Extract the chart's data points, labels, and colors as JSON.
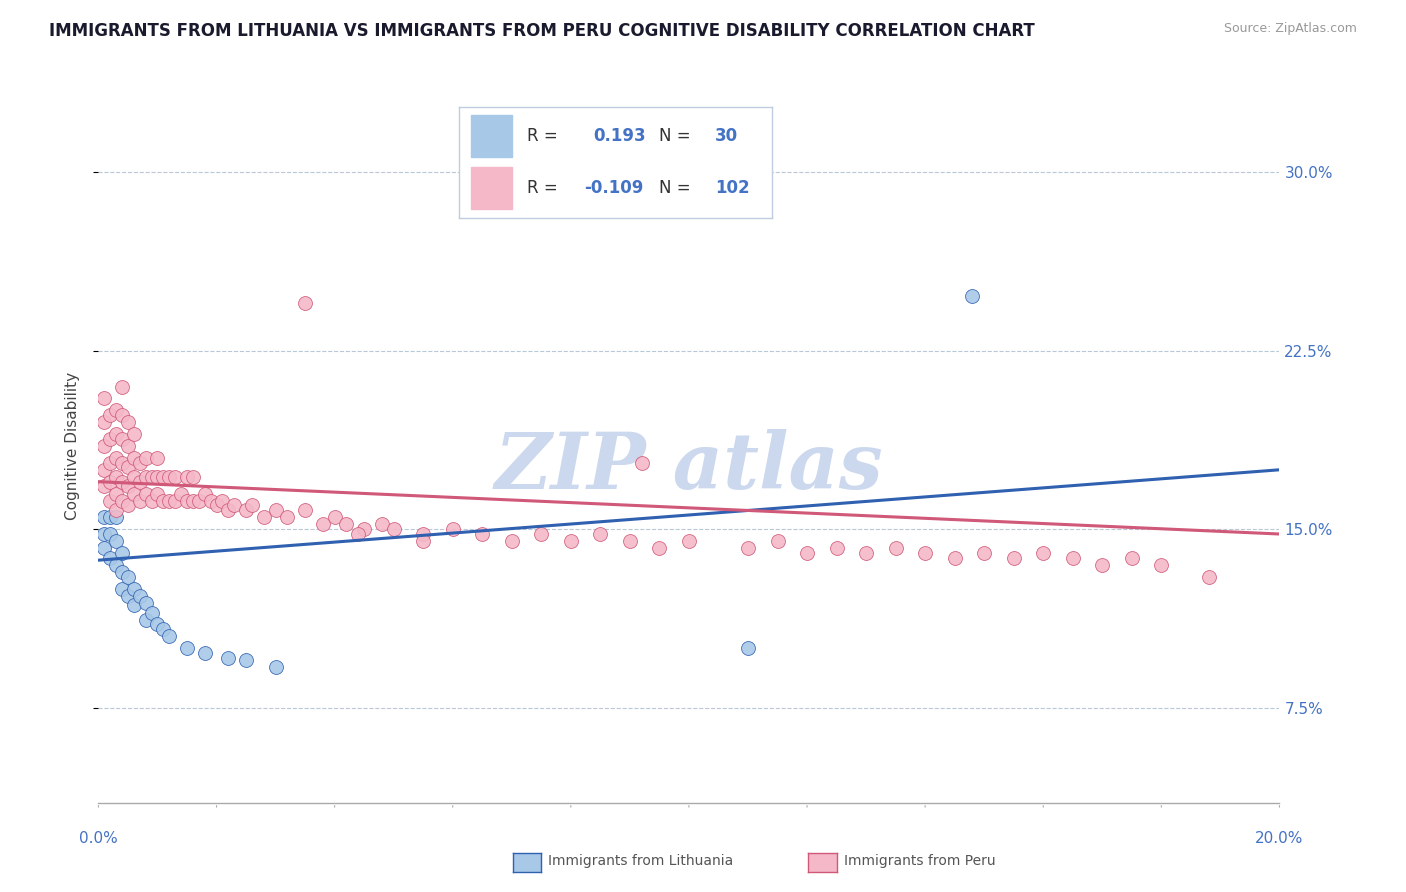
{
  "title": "IMMIGRANTS FROM LITHUANIA VS IMMIGRANTS FROM PERU COGNITIVE DISABILITY CORRELATION CHART",
  "source": "Source: ZipAtlas.com",
  "ylabel": "Cognitive Disability",
  "ytick_vals": [
    0.075,
    0.15,
    0.225,
    0.3
  ],
  "ytick_labels": [
    "7.5%",
    "15.0%",
    "22.5%",
    "30.0%"
  ],
  "xlim": [
    0.0,
    0.2
  ],
  "ylim": [
    0.035,
    0.335
  ],
  "color_lithuania": "#a8c8e8",
  "color_peru": "#f4b8c8",
  "line_color_lithuania": "#3060b0",
  "line_color_peru": "#d05878",
  "watermark_color": "#ccd8ee",
  "lithuania_x": [
    0.001,
    0.001,
    0.001,
    0.002,
    0.002,
    0.002,
    0.003,
    0.003,
    0.003,
    0.004,
    0.004,
    0.004,
    0.005,
    0.005,
    0.006,
    0.006,
    0.007,
    0.008,
    0.008,
    0.009,
    0.01,
    0.011,
    0.012,
    0.015,
    0.018,
    0.022,
    0.025,
    0.03,
    0.11,
    0.148
  ],
  "lithuania_y": [
    0.155,
    0.148,
    0.142,
    0.155,
    0.148,
    0.138,
    0.155,
    0.145,
    0.135,
    0.14,
    0.132,
    0.125,
    0.13,
    0.122,
    0.125,
    0.118,
    0.122,
    0.119,
    0.112,
    0.115,
    0.11,
    0.108,
    0.105,
    0.1,
    0.098,
    0.096,
    0.095,
    0.092,
    0.1,
    0.248
  ],
  "peru_x": [
    0.001,
    0.001,
    0.001,
    0.001,
    0.001,
    0.002,
    0.002,
    0.002,
    0.002,
    0.002,
    0.003,
    0.003,
    0.003,
    0.003,
    0.003,
    0.003,
    0.004,
    0.004,
    0.004,
    0.004,
    0.004,
    0.004,
    0.005,
    0.005,
    0.005,
    0.005,
    0.005,
    0.006,
    0.006,
    0.006,
    0.006,
    0.007,
    0.007,
    0.007,
    0.008,
    0.008,
    0.008,
    0.009,
    0.009,
    0.01,
    0.01,
    0.01,
    0.011,
    0.011,
    0.012,
    0.012,
    0.013,
    0.013,
    0.014,
    0.015,
    0.015,
    0.016,
    0.016,
    0.017,
    0.018,
    0.019,
    0.02,
    0.021,
    0.022,
    0.023,
    0.025,
    0.026,
    0.028,
    0.03,
    0.032,
    0.035,
    0.038,
    0.04,
    0.042,
    0.045,
    0.048,
    0.05,
    0.055,
    0.06,
    0.065,
    0.07,
    0.075,
    0.08,
    0.085,
    0.09,
    0.095,
    0.1,
    0.11,
    0.115,
    0.12,
    0.125,
    0.13,
    0.135,
    0.14,
    0.145,
    0.15,
    0.155,
    0.16,
    0.165,
    0.17,
    0.175,
    0.18,
    0.188,
    0.044,
    0.055,
    0.035,
    0.092
  ],
  "peru_y": [
    0.168,
    0.175,
    0.185,
    0.195,
    0.205,
    0.162,
    0.17,
    0.178,
    0.188,
    0.198,
    0.158,
    0.165,
    0.172,
    0.18,
    0.19,
    0.2,
    0.162,
    0.17,
    0.178,
    0.188,
    0.198,
    0.21,
    0.16,
    0.168,
    0.176,
    0.185,
    0.195,
    0.165,
    0.172,
    0.18,
    0.19,
    0.162,
    0.17,
    0.178,
    0.165,
    0.172,
    0.18,
    0.162,
    0.172,
    0.165,
    0.172,
    0.18,
    0.162,
    0.172,
    0.162,
    0.172,
    0.162,
    0.172,
    0.165,
    0.162,
    0.172,
    0.162,
    0.172,
    0.162,
    0.165,
    0.162,
    0.16,
    0.162,
    0.158,
    0.16,
    0.158,
    0.16,
    0.155,
    0.158,
    0.155,
    0.158,
    0.152,
    0.155,
    0.152,
    0.15,
    0.152,
    0.15,
    0.148,
    0.15,
    0.148,
    0.145,
    0.148,
    0.145,
    0.148,
    0.145,
    0.142,
    0.145,
    0.142,
    0.145,
    0.14,
    0.142,
    0.14,
    0.142,
    0.14,
    0.138,
    0.14,
    0.138,
    0.14,
    0.138,
    0.135,
    0.138,
    0.135,
    0.13,
    0.148,
    0.145,
    0.245,
    0.178
  ],
  "lith_trend_x": [
    0.0,
    0.2
  ],
  "lith_trend_y": [
    0.137,
    0.175
  ],
  "peru_trend_x": [
    0.0,
    0.2
  ],
  "peru_trend_y": [
    0.17,
    0.148
  ]
}
